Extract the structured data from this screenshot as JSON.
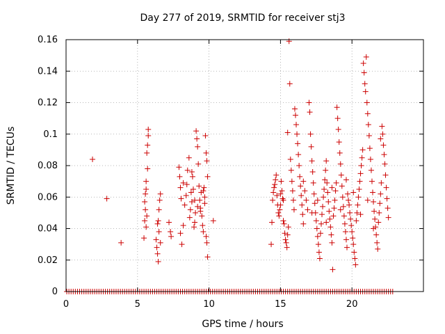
{
  "chart_data": {
    "type": "scatter",
    "title": "Day 277 of 2019, SRMTID for receiver stj3",
    "xlabel": "GPS time / hours",
    "ylabel": "SRMTID / TECUs",
    "xlim": [
      0,
      25
    ],
    "ylim": [
      0,
      0.16
    ],
    "xticks": [
      0,
      5,
      10,
      15,
      20
    ],
    "yticks": [
      0,
      0.02,
      0.04,
      0.06,
      0.08,
      0.1,
      0.12,
      0.14,
      0.16
    ],
    "xtick_labels": [
      "0",
      "5",
      "10",
      "15",
      "20"
    ],
    "ytick_labels": [
      "0",
      "0.02",
      "0.04",
      "0.06",
      "0.08",
      "0.1",
      "0.12",
      "0.14",
      "0.16"
    ],
    "grid": true,
    "marker": "+",
    "color": "#cc0000",
    "series": [
      {
        "name": "SRMTID",
        "points": [
          [
            1.85,
            0.084
          ],
          [
            2.85,
            0.059
          ],
          [
            3.85,
            0.031
          ],
          [
            5.45,
            0.034
          ],
          [
            5.5,
            0.045
          ],
          [
            5.55,
            0.052
          ],
          [
            5.6,
            0.065
          ],
          [
            5.6,
            0.07
          ],
          [
            5.65,
            0.088
          ],
          [
            5.7,
            0.093
          ],
          [
            5.75,
            0.103
          ],
          [
            5.75,
            0.099
          ],
          [
            5.7,
            0.078
          ],
          [
            5.55,
            0.062
          ],
          [
            5.5,
            0.057
          ],
          [
            5.65,
            0.048
          ],
          [
            5.6,
            0.041
          ],
          [
            6.3,
            0.033
          ],
          [
            6.35,
            0.028
          ],
          [
            6.4,
            0.024
          ],
          [
            6.45,
            0.019
          ],
          [
            6.45,
            0.045
          ],
          [
            6.5,
            0.052
          ],
          [
            6.55,
            0.058
          ],
          [
            6.6,
            0.062
          ],
          [
            6.5,
            0.038
          ],
          [
            6.4,
            0.043
          ],
          [
            6.6,
            0.031
          ],
          [
            7.2,
            0.044
          ],
          [
            7.3,
            0.038
          ],
          [
            7.35,
            0.035
          ],
          [
            7.9,
            0.079
          ],
          [
            7.95,
            0.073
          ],
          [
            8.0,
            0.066
          ],
          [
            8.05,
            0.059
          ],
          [
            8.0,
            0.037
          ],
          [
            8.1,
            0.03
          ],
          [
            8.2,
            0.042
          ],
          [
            8.3,
            0.055
          ],
          [
            8.4,
            0.061
          ],
          [
            8.45,
            0.068
          ],
          [
            8.5,
            0.077
          ],
          [
            8.6,
            0.085
          ],
          [
            8.65,
            0.047
          ],
          [
            8.7,
            0.052
          ],
          [
            8.75,
            0.063
          ],
          [
            8.8,
            0.057
          ],
          [
            8.85,
            0.073
          ],
          [
            8.9,
            0.065
          ],
          [
            8.95,
            0.041
          ],
          [
            9.0,
            0.044
          ],
          [
            9.05,
            0.05
          ],
          [
            9.1,
            0.102
          ],
          [
            9.15,
            0.097
          ],
          [
            9.2,
            0.092
          ],
          [
            9.25,
            0.081
          ],
          [
            9.3,
            0.067
          ],
          [
            9.35,
            0.058
          ],
          [
            9.4,
            0.053
          ],
          [
            9.45,
            0.063
          ],
          [
            9.5,
            0.048
          ],
          [
            9.55,
            0.042
          ],
          [
            9.6,
            0.038
          ],
          [
            9.65,
            0.066
          ],
          [
            9.7,
            0.06
          ],
          [
            9.75,
            0.099
          ],
          [
            9.8,
            0.088
          ],
          [
            9.85,
            0.083
          ],
          [
            9.9,
            0.073
          ],
          [
            9.8,
            0.035
          ],
          [
            9.85,
            0.031
          ],
          [
            9.9,
            0.022
          ],
          [
            10.3,
            0.045
          ],
          [
            8.2,
            0.069
          ],
          [
            8.8,
            0.076
          ],
          [
            9.0,
            0.058
          ],
          [
            9.2,
            0.054
          ],
          [
            9.4,
            0.051
          ],
          [
            9.6,
            0.064
          ],
          [
            9.7,
            0.056
          ],
          [
            14.35,
            0.03
          ],
          [
            14.4,
            0.044
          ],
          [
            14.45,
            0.058
          ],
          [
            14.5,
            0.063
          ],
          [
            14.55,
            0.066
          ],
          [
            14.6,
            0.068
          ],
          [
            14.65,
            0.071
          ],
          [
            14.7,
            0.074
          ],
          [
            14.75,
            0.061
          ],
          [
            14.8,
            0.055
          ],
          [
            14.85,
            0.05
          ],
          [
            14.9,
            0.048
          ],
          [
            14.95,
            0.052
          ],
          [
            15.0,
            0.055
          ],
          [
            15.05,
            0.07
          ],
          [
            15.1,
            0.064
          ],
          [
            15.15,
            0.059
          ],
          [
            15.2,
            0.045
          ],
          [
            15.25,
            0.043
          ],
          [
            15.3,
            0.037
          ],
          [
            15.35,
            0.033
          ],
          [
            15.4,
            0.031
          ],
          [
            15.45,
            0.028
          ],
          [
            15.5,
            0.036
          ],
          [
            15.55,
            0.041
          ],
          [
            15.6,
            0.159
          ],
          [
            15.65,
            0.132
          ],
          [
            15.5,
            0.101
          ],
          [
            15.7,
            0.084
          ],
          [
            15.75,
            0.077
          ],
          [
            15.8,
            0.07
          ],
          [
            15.85,
            0.064
          ],
          [
            15.9,
            0.058
          ],
          [
            15.95,
            0.052
          ],
          [
            16.0,
            0.116
          ],
          [
            16.05,
            0.112
          ],
          [
            16.1,
            0.106
          ],
          [
            16.15,
            0.1
          ],
          [
            16.2,
            0.094
          ],
          [
            16.25,
            0.087
          ],
          [
            16.3,
            0.08
          ],
          [
            16.35,
            0.073
          ],
          [
            16.4,
            0.067
          ],
          [
            16.45,
            0.061
          ],
          [
            16.5,
            0.055
          ],
          [
            16.55,
            0.049
          ],
          [
            16.6,
            0.043
          ],
          [
            16.7,
            0.064
          ],
          [
            16.8,
            0.058
          ],
          [
            16.9,
            0.052
          ],
          [
            17.0,
            0.12
          ],
          [
            17.05,
            0.114
          ],
          [
            17.1,
            0.1
          ],
          [
            17.15,
            0.092
          ],
          [
            17.2,
            0.083
          ],
          [
            17.25,
            0.076
          ],
          [
            17.3,
            0.069
          ],
          [
            17.35,
            0.062
          ],
          [
            17.4,
            0.056
          ],
          [
            17.45,
            0.05
          ],
          [
            17.5,
            0.045
          ],
          [
            17.55,
            0.04
          ],
          [
            17.6,
            0.035
          ],
          [
            17.65,
            0.03
          ],
          [
            17.7,
            0.025
          ],
          [
            17.75,
            0.021
          ],
          [
            17.8,
            0.037
          ],
          [
            17.85,
            0.043
          ],
          [
            17.9,
            0.049
          ],
          [
            17.95,
            0.054
          ],
          [
            18.0,
            0.06
          ],
          [
            18.05,
            0.065
          ],
          [
            18.1,
            0.071
          ],
          [
            18.15,
            0.077
          ],
          [
            18.2,
            0.083
          ],
          [
            18.25,
            0.069
          ],
          [
            18.3,
            0.063
          ],
          [
            18.35,
            0.057
          ],
          [
            18.4,
            0.051
          ],
          [
            18.45,
            0.046
          ],
          [
            18.5,
            0.041
          ],
          [
            18.55,
            0.036
          ],
          [
            18.6,
            0.031
          ],
          [
            18.65,
            0.014
          ],
          [
            18.7,
            0.048
          ],
          [
            18.75,
            0.053
          ],
          [
            18.8,
            0.058
          ],
          [
            18.85,
            0.064
          ],
          [
            18.9,
            0.069
          ],
          [
            18.95,
            0.117
          ],
          [
            19.0,
            0.11
          ],
          [
            19.05,
            0.103
          ],
          [
            19.1,
            0.095
          ],
          [
            19.15,
            0.088
          ],
          [
            19.2,
            0.081
          ],
          [
            19.25,
            0.074
          ],
          [
            19.3,
            0.067
          ],
          [
            19.35,
            0.06
          ],
          [
            19.4,
            0.054
          ],
          [
            19.45,
            0.048
          ],
          [
            19.5,
            0.043
          ],
          [
            19.55,
            0.038
          ],
          [
            19.6,
            0.033
          ],
          [
            19.65,
            0.028
          ],
          [
            19.7,
            0.062
          ],
          [
            19.75,
            0.058
          ],
          [
            19.8,
            0.055
          ],
          [
            19.85,
            0.05
          ],
          [
            19.9,
            0.046
          ],
          [
            19.95,
            0.042
          ],
          [
            20.0,
            0.038
          ],
          [
            20.05,
            0.034
          ],
          [
            20.1,
            0.03
          ],
          [
            20.15,
            0.025
          ],
          [
            20.2,
            0.021
          ],
          [
            20.25,
            0.017
          ],
          [
            20.3,
            0.045
          ],
          [
            20.35,
            0.05
          ],
          [
            20.4,
            0.055
          ],
          [
            20.45,
            0.06
          ],
          [
            20.5,
            0.065
          ],
          [
            20.55,
            0.07
          ],
          [
            20.6,
            0.075
          ],
          [
            20.65,
            0.08
          ],
          [
            20.7,
            0.085
          ],
          [
            20.75,
            0.09
          ],
          [
            20.8,
            0.145
          ],
          [
            20.85,
            0.139
          ],
          [
            20.9,
            0.132
          ],
          [
            20.95,
            0.127
          ],
          [
            21.0,
            0.149
          ],
          [
            21.05,
            0.12
          ],
          [
            21.1,
            0.113
          ],
          [
            21.15,
            0.106
          ],
          [
            21.2,
            0.099
          ],
          [
            21.25,
            0.091
          ],
          [
            21.3,
            0.084
          ],
          [
            21.35,
            0.077
          ],
          [
            21.4,
            0.07
          ],
          [
            21.45,
            0.063
          ],
          [
            21.5,
            0.057
          ],
          [
            21.55,
            0.051
          ],
          [
            21.6,
            0.046
          ],
          [
            21.65,
            0.041
          ],
          [
            21.7,
            0.036
          ],
          [
            21.75,
            0.031
          ],
          [
            21.8,
            0.027
          ],
          [
            21.85,
            0.044
          ],
          [
            21.9,
            0.05
          ],
          [
            21.95,
            0.056
          ],
          [
            22.0,
            0.062
          ],
          [
            22.05,
            0.069
          ],
          [
            22.1,
            0.105
          ],
          [
            22.15,
            0.1
          ],
          [
            22.2,
            0.093
          ],
          [
            22.25,
            0.087
          ],
          [
            22.3,
            0.081
          ],
          [
            22.35,
            0.074
          ],
          [
            22.4,
            0.066
          ],
          [
            22.45,
            0.059
          ],
          [
            22.5,
            0.053
          ],
          [
            22.55,
            0.047
          ],
          [
            15.0,
            0.062
          ],
          [
            15.2,
            0.058
          ],
          [
            16.6,
            0.07
          ],
          [
            17.2,
            0.05
          ],
          [
            17.6,
            0.058
          ],
          [
            18.2,
            0.044
          ],
          [
            18.6,
            0.066
          ],
          [
            19.2,
            0.052
          ],
          [
            19.6,
            0.071
          ],
          [
            20.1,
            0.063
          ],
          [
            20.6,
            0.049
          ],
          [
            21.1,
            0.058
          ],
          [
            21.5,
            0.04
          ],
          [
            22.0,
            0.097
          ]
        ],
        "zero_x": [
          0.05,
          0.2,
          0.35,
          0.5,
          0.65,
          0.8,
          0.95,
          1.1,
          1.25,
          1.4,
          1.55,
          1.7,
          1.85,
          2.0,
          2.15,
          2.3,
          2.45,
          2.6,
          2.75,
          2.9,
          3.05,
          3.2,
          3.35,
          3.5,
          3.65,
          3.8,
          3.95,
          4.1,
          4.25,
          4.4,
          4.55,
          4.7,
          4.85,
          5.0,
          5.15,
          5.3,
          5.45,
          5.6,
          5.75,
          5.9,
          6.05,
          6.2,
          6.35,
          6.5,
          6.65,
          6.8,
          6.95,
          7.1,
          7.25,
          7.4,
          7.55,
          7.7,
          7.85,
          8.0,
          8.15,
          8.3,
          8.45,
          8.6,
          8.75,
          8.9,
          9.05,
          9.2,
          9.35,
          9.5,
          9.65,
          9.8,
          9.95,
          10.1,
          10.25,
          10.4,
          10.55,
          10.7,
          10.85,
          11.0,
          11.15,
          11.3,
          11.45,
          11.6,
          11.75,
          11.9,
          12.05,
          12.2,
          12.35,
          12.5,
          12.65,
          12.8,
          12.95,
          13.1,
          13.25,
          13.4,
          13.55,
          13.7,
          13.85,
          14.0,
          14.15,
          14.3,
          14.45,
          14.6,
          14.75,
          14.9,
          15.05,
          15.2,
          15.35,
          15.5,
          15.65,
          15.8,
          15.95,
          16.1,
          16.25,
          16.4,
          16.55,
          16.7,
          16.85,
          17.0,
          17.15,
          17.3,
          17.45,
          17.6,
          17.75,
          17.9,
          18.05,
          18.2,
          18.35,
          18.5,
          18.65,
          18.8,
          18.95,
          19.1,
          19.25,
          19.4,
          19.55,
          19.7,
          19.85,
          20.0,
          20.15,
          20.3,
          20.45,
          20.6,
          20.75,
          20.9,
          21.05,
          21.2,
          21.35,
          21.5,
          21.65,
          21.8,
          21.95,
          22.1,
          22.25,
          22.4,
          22.55,
          22.7,
          22.85
        ]
      }
    ]
  }
}
